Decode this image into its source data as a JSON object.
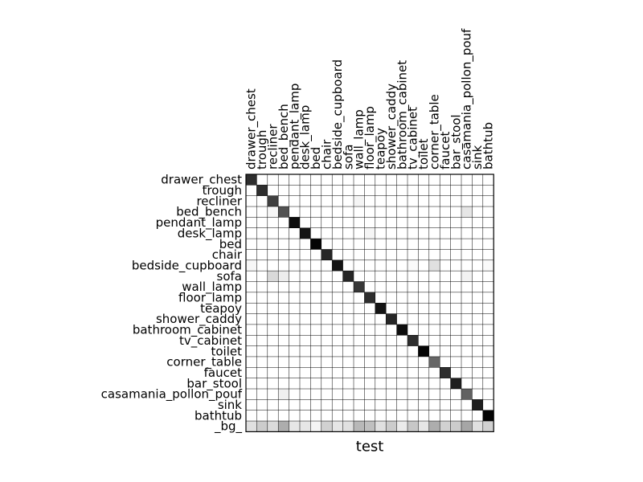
{
  "chart_data": {
    "type": "heatmap",
    "title": "",
    "xlabel": "test",
    "ylabel": "",
    "colormap": "greys",
    "grid": true,
    "columns": [
      "drawer_chest",
      "trough",
      "recliner",
      "bed_bench",
      "pendant_lamp",
      "desk_lamp",
      "bed",
      "chair",
      "bedside_cupboard",
      "sofa",
      "wall_lamp",
      "floor_lamp",
      "teapoy",
      "shower_caddy",
      "bathroom_cabinet",
      "tv_cabinet",
      "toilet",
      "corner_table",
      "faucet",
      "bar_stool",
      "casamania_pollon_pouf",
      "sink",
      "bathtub"
    ],
    "rows": [
      "drawer_chest",
      "trough",
      "recliner",
      "bed_bench",
      "pendant_lamp",
      "desk_lamp",
      "bed",
      "chair",
      "bedside_cupboard",
      "sofa",
      "wall_lamp",
      "floor_lamp",
      "teapoy",
      "shower_caddy",
      "bathroom_cabinet",
      "tv_cabinet",
      "toilet",
      "corner_table",
      "faucet",
      "bar_stool",
      "casamania_pollon_pouf",
      "sink",
      "bathtub",
      "_bg_"
    ],
    "values": [
      [
        0.82,
        0,
        0,
        0,
        0,
        0,
        0,
        0,
        0,
        0,
        0,
        0,
        0,
        0,
        0,
        0,
        0,
        0,
        0,
        0,
        0,
        0,
        0
      ],
      [
        0,
        0.82,
        0,
        0,
        0,
        0,
        0,
        0,
        0,
        0,
        0,
        0,
        0,
        0,
        0,
        0,
        0,
        0,
        0,
        0,
        0,
        0,
        0
      ],
      [
        0,
        0,
        0.75,
        0,
        0,
        0,
        0,
        0,
        0,
        0,
        0.04,
        0,
        0,
        0,
        0,
        0,
        0,
        0,
        0,
        0,
        0,
        0,
        0
      ],
      [
        0,
        0,
        0.03,
        0.68,
        0,
        0,
        0,
        0,
        0,
        0,
        0,
        0,
        0,
        0,
        0,
        0,
        0,
        0,
        0,
        0,
        0.1,
        0,
        0
      ],
      [
        0,
        0,
        0,
        0,
        0.95,
        0,
        0,
        0,
        0,
        0,
        0,
        0,
        0,
        0,
        0,
        0,
        0,
        0,
        0,
        0,
        0,
        0,
        0
      ],
      [
        0,
        0,
        0,
        0,
        0,
        0.92,
        0,
        0,
        0,
        0,
        0,
        0.04,
        0,
        0,
        0,
        0,
        0,
        0,
        0,
        0,
        0,
        0,
        0
      ],
      [
        0,
        0,
        0,
        0,
        0,
        0,
        0.98,
        0,
        0,
        0,
        0,
        0,
        0,
        0,
        0,
        0,
        0,
        0,
        0,
        0,
        0,
        0,
        0
      ],
      [
        0,
        0,
        0,
        0,
        0,
        0,
        0,
        0.85,
        0,
        0,
        0,
        0,
        0,
        0,
        0,
        0,
        0,
        0,
        0,
        0,
        0,
        0,
        0
      ],
      [
        0.03,
        0,
        0,
        0,
        0,
        0,
        0,
        0,
        0.92,
        0,
        0,
        0,
        0,
        0,
        0,
        0.02,
        0,
        0.12,
        0,
        0,
        0,
        0,
        0.02
      ],
      [
        0,
        0,
        0.15,
        0.07,
        0,
        0,
        0,
        0,
        0,
        0.85,
        0,
        0,
        0,
        0,
        0,
        0,
        0,
        0,
        0,
        0,
        0.05,
        0,
        0
      ],
      [
        0,
        0,
        0,
        0,
        0,
        0,
        0,
        0,
        0,
        0,
        0.78,
        0,
        0,
        0,
        0,
        0,
        0,
        0,
        0,
        0,
        0,
        0,
        0
      ],
      [
        0,
        0,
        0,
        0,
        0,
        0,
        0,
        0,
        0,
        0,
        0,
        0.82,
        0,
        0,
        0,
        0,
        0,
        0,
        0,
        0,
        0,
        0,
        0
      ],
      [
        0,
        0,
        0,
        0,
        0,
        0,
        0,
        0,
        0,
        0,
        0,
        0,
        0.92,
        0,
        0,
        0,
        0,
        0,
        0,
        0,
        0,
        0,
        0
      ],
      [
        0,
        0,
        0,
        0,
        0,
        0,
        0,
        0,
        0,
        0,
        0,
        0,
        0,
        0.85,
        0,
        0,
        0,
        0,
        0,
        0,
        0,
        0,
        0
      ],
      [
        0,
        0,
        0,
        0,
        0,
        0,
        0,
        0,
        0,
        0,
        0,
        0,
        0,
        0,
        0.95,
        0,
        0,
        0,
        0,
        0,
        0,
        0,
        0
      ],
      [
        0,
        0,
        0,
        0,
        0,
        0,
        0,
        0,
        0,
        0,
        0,
        0,
        0,
        0,
        0,
        0.82,
        0,
        0,
        0,
        0,
        0,
        0,
        0
      ],
      [
        0,
        0,
        0,
        0,
        0,
        0,
        0,
        0,
        0,
        0,
        0,
        0,
        0,
        0,
        0,
        0,
        0.98,
        0,
        0,
        0,
        0,
        0,
        0
      ],
      [
        0,
        0,
        0,
        0,
        0,
        0,
        0,
        0,
        0,
        0,
        0,
        0,
        0,
        0,
        0,
        0,
        0,
        0.6,
        0,
        0,
        0,
        0,
        0
      ],
      [
        0,
        0,
        0,
        0,
        0,
        0,
        0,
        0,
        0,
        0,
        0,
        0,
        0,
        0,
        0,
        0,
        0,
        0,
        0.82,
        0,
        0,
        0,
        0
      ],
      [
        0,
        0,
        0,
        0,
        0,
        0,
        0,
        0,
        0,
        0,
        0,
        0,
        0,
        0,
        0,
        0,
        0,
        0,
        0,
        0.88,
        0,
        0,
        0
      ],
      [
        0,
        0,
        0,
        0.06,
        0,
        0,
        0,
        0,
        0,
        0,
        0,
        0,
        0,
        0,
        0,
        0,
        0,
        0,
        0,
        0,
        0.62,
        0,
        0
      ],
      [
        0,
        0,
        0,
        0,
        0,
        0,
        0,
        0,
        0,
        0,
        0,
        0,
        0,
        0,
        0,
        0,
        0,
        0,
        0,
        0,
        0,
        0.88,
        0
      ],
      [
        0,
        0,
        0,
        0,
        0,
        0,
        0,
        0,
        0,
        0,
        0,
        0,
        0,
        0,
        0,
        0,
        0,
        0,
        0,
        0,
        0,
        0,
        0.98
      ],
      [
        0.12,
        0.2,
        0.14,
        0.32,
        0.1,
        0.1,
        0.04,
        0.18,
        0.1,
        0.12,
        0.28,
        0.25,
        0.12,
        0.2,
        0.08,
        0.22,
        0.1,
        0.32,
        0.18,
        0.2,
        0.35,
        0.12,
        0.18
      ]
    ]
  }
}
